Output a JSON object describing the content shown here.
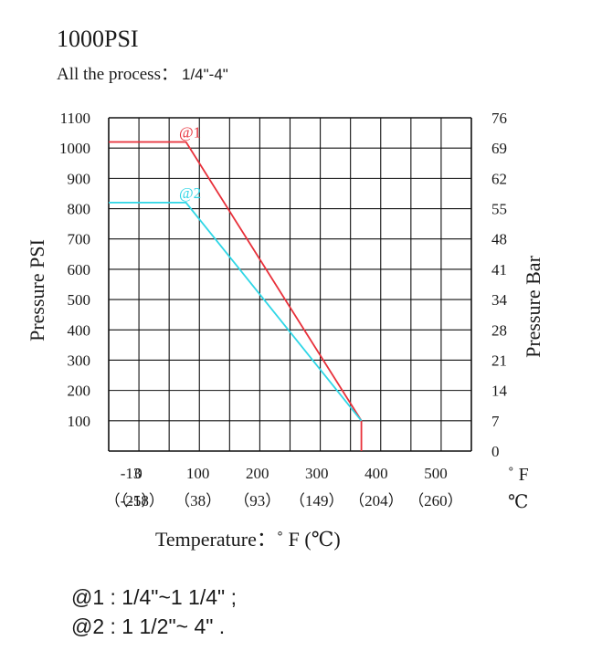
{
  "header": {
    "title": "1000PSI",
    "subtitle_label": "All the process：",
    "subtitle_value": "1/4\"-4\""
  },
  "chart_data": {
    "type": "line",
    "ylabel": "Pressure PSI",
    "ylabel_right": "Pressure Bar",
    "xlabel": "Temperature：˚ F (℃)",
    "x_unit": "˚ F",
    "x_unit_secondary": "℃",
    "xlim": [
      -50,
      560
    ],
    "ylim": [
      0,
      1100
    ],
    "grid": true,
    "y_ticks": [
      100,
      200,
      300,
      400,
      500,
      600,
      700,
      800,
      900,
      1000,
      1100
    ],
    "y_ticks_right": [
      "0",
      "7",
      "14",
      "21",
      "28",
      "34",
      "41",
      "48",
      "55",
      "62",
      "69",
      "76"
    ],
    "x_ticks": [
      {
        "value": -13,
        "label": "-13",
        "celsius": "（-25）"
      },
      {
        "value": 0,
        "label": "0",
        "celsius": "（-18）"
      },
      {
        "value": 100,
        "label": "100",
        "celsius": "（38）"
      },
      {
        "value": 200,
        "label": "200",
        "celsius": "（93）"
      },
      {
        "value": 300,
        "label": "300",
        "celsius": "（149）"
      },
      {
        "value": 400,
        "label": "400",
        "celsius": "（204）"
      },
      {
        "value": 500,
        "label": "500",
        "celsius": "（260）"
      }
    ],
    "series": [
      {
        "name": "@1",
        "color": "#e8303a",
        "x": [
          -50,
          80,
          375,
          375
        ],
        "y": [
          1020,
          1020,
          100,
          0
        ]
      },
      {
        "name": "@2",
        "color": "#2fd6e6",
        "x": [
          -50,
          80,
          375
        ],
        "y": [
          820,
          820,
          100
        ]
      }
    ]
  },
  "notes": [
    {
      "label": "@1",
      "text": " : 1/4\"~1 1/4\" ;"
    },
    {
      "label": "@2",
      "text": " : 1 1/2\"~ 4\" ."
    }
  ]
}
